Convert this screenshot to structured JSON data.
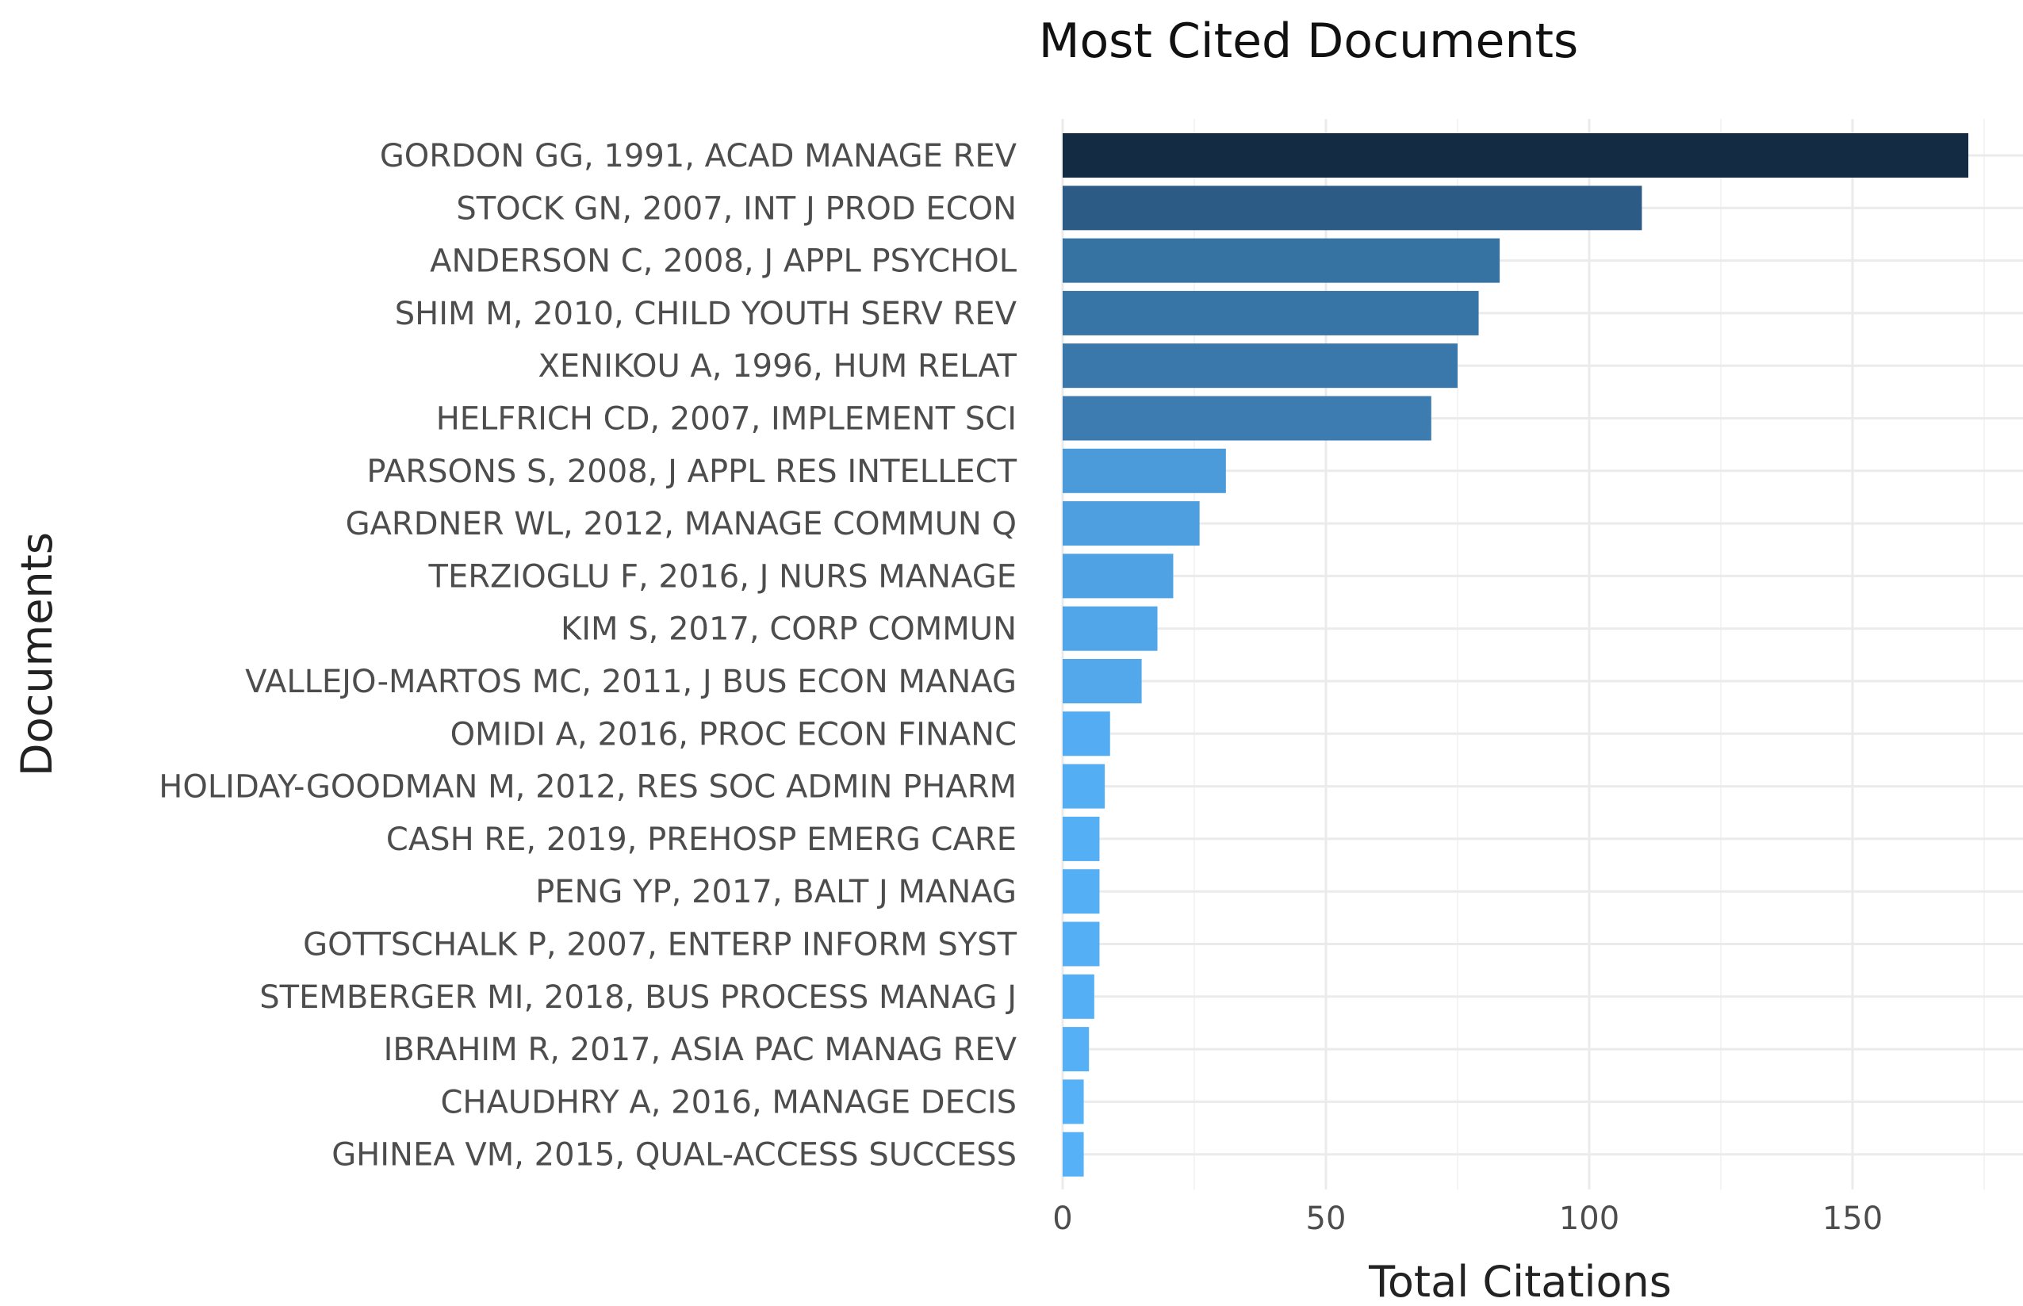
{
  "chart_data": {
    "type": "bar",
    "orientation": "horizontal",
    "title": "Most Cited Documents",
    "xlabel": "Total Citations",
    "ylabel": "Documents",
    "xlim": [
      0,
      180
    ],
    "x_ticks": [
      0,
      50,
      100,
      150
    ],
    "grid": true,
    "legend": "none",
    "color_scale": {
      "low": "#56B1F7",
      "high": "#132B43"
    },
    "categories": [
      "GORDON GG, 1991, ACAD MANAGE REV",
      "STOCK GN, 2007, INT J PROD ECON",
      "ANDERSON C, 2008, J APPL PSYCHOL",
      "SHIM M, 2010, CHILD YOUTH SERV REV",
      "XENIKOU A, 1996, HUM RELAT",
      "HELFRICH CD, 2007, IMPLEMENT SCI",
      "PARSONS S, 2008, J APPL RES INTELLECT",
      "GARDNER WL, 2012, MANAGE COMMUN Q",
      "TERZIOGLU F, 2016, J NURS MANAGE",
      "KIM S, 2017, CORP COMMUN",
      "VALLEJO-MARTOS MC, 2011, J BUS ECON MANAG",
      "OMIDI A, 2016, PROC ECON FINANC",
      "HOLIDAY-GOODMAN M, 2012, RES SOC ADMIN PHARM",
      "CASH RE, 2019, PREHOSP EMERG CARE",
      "PENG YP, 2017, BALT J MANAG",
      "GOTTSCHALK P, 2007, ENTERP INFORM SYST",
      "STEMBERGER MI, 2018, BUS PROCESS MANAG J",
      "IBRAHIM R, 2017, ASIA PAC MANAG REV",
      "CHAUDHRY A, 2016, MANAGE DECIS",
      "GHINEA VM, 2015, QUAL-ACCESS SUCCESS"
    ],
    "values": [
      172,
      110,
      83,
      79,
      75,
      70,
      31,
      26,
      21,
      18,
      15,
      9,
      8,
      7,
      7,
      7,
      6,
      5,
      4,
      4
    ]
  }
}
